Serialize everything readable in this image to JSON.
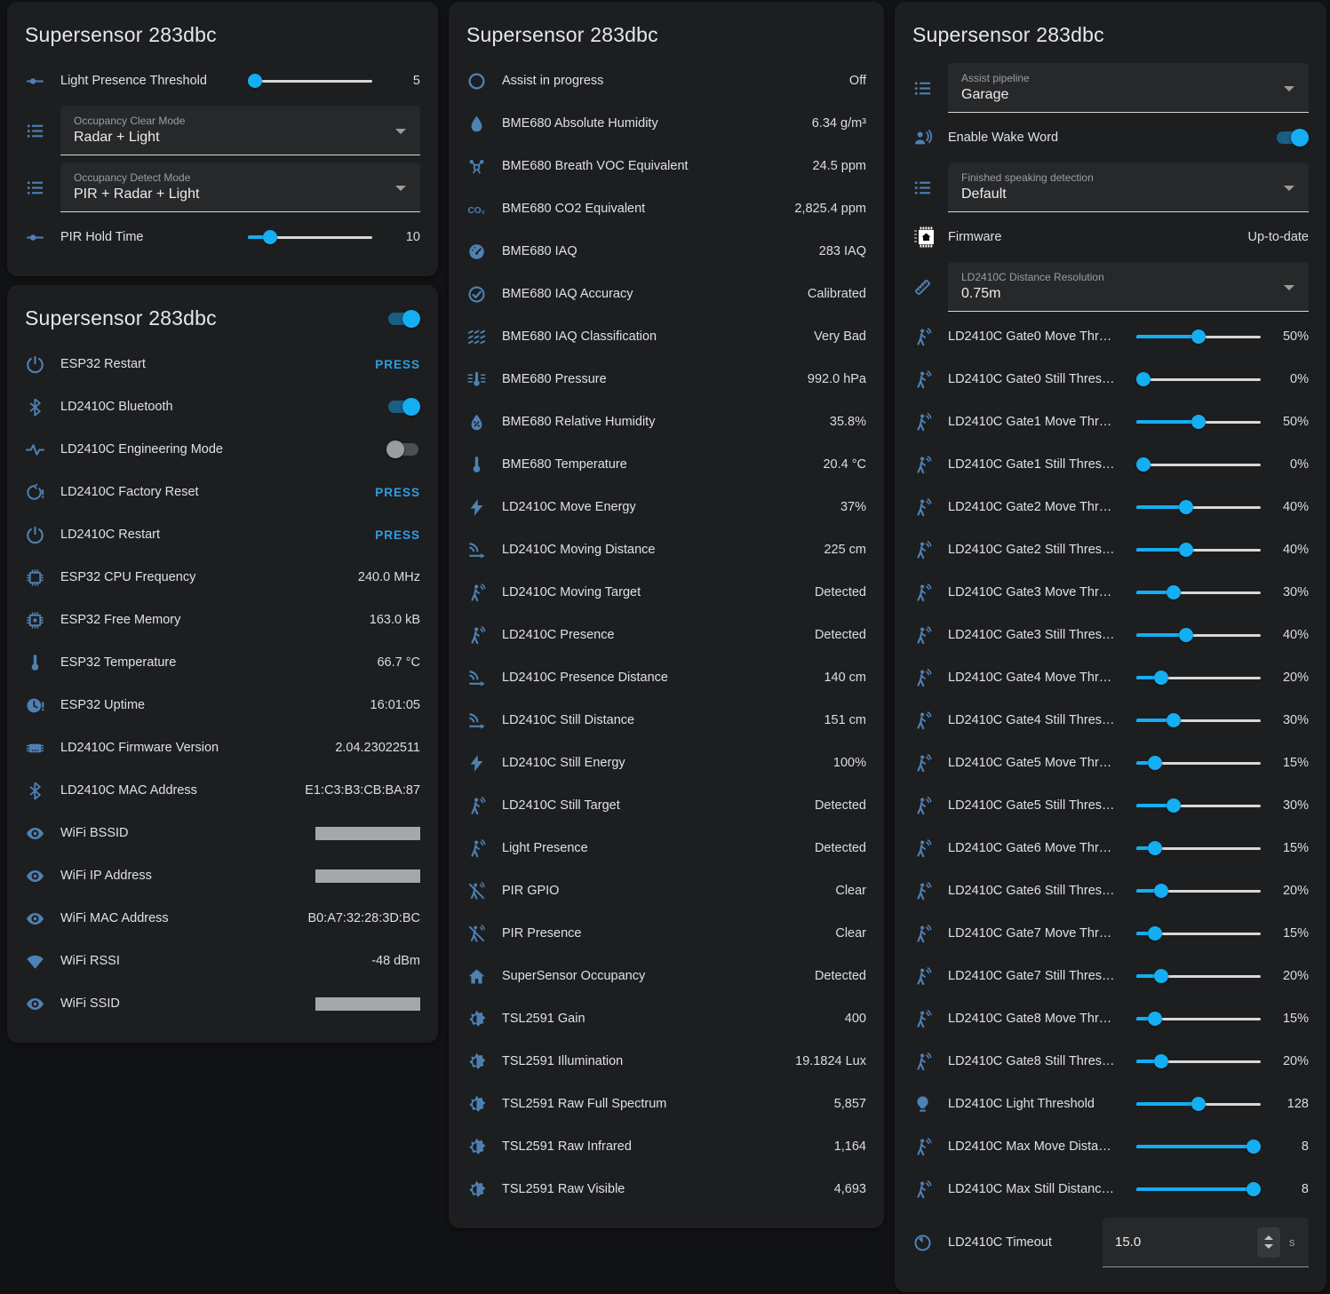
{
  "cards": [
    {
      "title": "Supersensor 283dbc",
      "rows": [
        {
          "icon": "tune",
          "label": "Light Presence Threshold",
          "type": "slider",
          "value": "5",
          "percent": 5
        },
        {
          "icon": "list",
          "type": "select",
          "field_label": "Occupancy Clear Mode",
          "value": "Radar + Light"
        },
        {
          "icon": "list",
          "type": "select",
          "field_label": "Occupancy Detect Mode",
          "value": "PIR + Radar + Light"
        },
        {
          "icon": "tune",
          "label": "PIR Hold Time",
          "type": "slider",
          "value": "10",
          "percent": 18
        }
      ]
    },
    {
      "title": "Supersensor 283dbc",
      "header_toggle_on": true,
      "rows": [
        {
          "icon": "restart",
          "label": "ESP32 Restart",
          "type": "press",
          "value": "PRESS"
        },
        {
          "icon": "bluetooth",
          "label": "LD2410C Bluetooth",
          "type": "toggle",
          "on": true
        },
        {
          "icon": "pulse",
          "label": "LD2410C Engineering Mode",
          "type": "toggle",
          "on": false
        },
        {
          "icon": "restart-alert",
          "label": "LD2410C Factory Reset",
          "type": "press",
          "value": "PRESS"
        },
        {
          "icon": "restart",
          "label": "LD2410C Restart",
          "type": "press",
          "value": "PRESS"
        },
        {
          "icon": "chip",
          "label": "ESP32 CPU Frequency",
          "type": "text",
          "value": "240.0 MHz"
        },
        {
          "icon": "memory",
          "label": "ESP32 Free Memory",
          "type": "text",
          "value": "163.0 kB"
        },
        {
          "icon": "thermometer",
          "label": "ESP32 Temperature",
          "type": "text",
          "value": "66.7 °C"
        },
        {
          "icon": "clock-alert",
          "label": "ESP32 Uptime",
          "type": "text",
          "value": "16:01:05"
        },
        {
          "icon": "chip-lines",
          "label": "LD2410C Firmware Version",
          "type": "text",
          "value": "2.04.23022511"
        },
        {
          "icon": "bluetooth",
          "label": "LD2410C MAC Address",
          "type": "text",
          "value": "E1:C3:B3:CB:BA:87"
        },
        {
          "icon": "eye",
          "label": "WiFi BSSID",
          "type": "redacted"
        },
        {
          "icon": "eye",
          "label": "WiFi IP Address",
          "type": "redacted"
        },
        {
          "icon": "eye",
          "label": "WiFi MAC Address",
          "type": "text",
          "value": "B0:A7:32:28:3D:BC"
        },
        {
          "icon": "wifi",
          "label": "WiFi RSSI",
          "type": "text",
          "value": "-48 dBm"
        },
        {
          "icon": "eye",
          "label": "WiFi SSID",
          "type": "redacted"
        }
      ]
    },
    {
      "title": "Supersensor 283dbc",
      "rows": [
        {
          "icon": "circle",
          "label": "Assist in progress",
          "type": "text",
          "value": "Off"
        },
        {
          "icon": "drop",
          "label": "BME680 Absolute Humidity",
          "type": "text",
          "value": "6.34 g/m³"
        },
        {
          "icon": "molecule",
          "label": "BME680 Breath VOC Equivalent",
          "type": "text",
          "value": "24.5 ppm"
        },
        {
          "icon": "co2",
          "label": "BME680 CO2 Equivalent",
          "type": "text",
          "value": "2,825.4 ppm"
        },
        {
          "icon": "gauge",
          "label": "BME680 IAQ",
          "type": "text",
          "value": "283 IAQ"
        },
        {
          "icon": "check-circle",
          "label": "BME680 IAQ Accuracy",
          "type": "text",
          "value": "Calibrated"
        },
        {
          "icon": "air-filter",
          "label": "BME680 IAQ Classification",
          "type": "text",
          "value": "Very Bad"
        },
        {
          "icon": "pressure",
          "label": "BME680 Pressure",
          "type": "text",
          "value": "992.0 hPa"
        },
        {
          "icon": "water-percent",
          "label": "BME680 Relative Humidity",
          "type": "text",
          "value": "35.8%"
        },
        {
          "icon": "thermometer",
          "label": "BME680 Temperature",
          "type": "text",
          "value": "20.4 °C"
        },
        {
          "icon": "bolt",
          "label": "LD2410C Move Energy",
          "type": "text",
          "value": "37%"
        },
        {
          "icon": "signal-distance",
          "label": "LD2410C Moving Distance",
          "type": "text",
          "value": "225 cm"
        },
        {
          "icon": "person",
          "label": "LD2410C Moving Target",
          "type": "text",
          "value": "Detected"
        },
        {
          "icon": "person",
          "label": "LD2410C Presence",
          "type": "text",
          "value": "Detected"
        },
        {
          "icon": "signal-distance",
          "label": "LD2410C Presence Distance",
          "type": "text",
          "value": "140 cm"
        },
        {
          "icon": "signal-distance",
          "label": "LD2410C Still Distance",
          "type": "text",
          "value": "151 cm"
        },
        {
          "icon": "bolt",
          "label": "LD2410C Still Energy",
          "type": "text",
          "value": "100%"
        },
        {
          "icon": "person",
          "label": "LD2410C Still Target",
          "type": "text",
          "value": "Detected"
        },
        {
          "icon": "person",
          "label": "Light Presence",
          "type": "text",
          "value": "Detected"
        },
        {
          "icon": "person-off",
          "label": "PIR GPIO",
          "type": "text",
          "value": "Clear"
        },
        {
          "icon": "person-off",
          "label": "PIR Presence",
          "type": "text",
          "value": "Clear"
        },
        {
          "icon": "home",
          "label": "SuperSensor Occupancy",
          "type": "text",
          "value": "Detected"
        },
        {
          "icon": "brightness",
          "label": "TSL2591 Gain",
          "type": "text",
          "value": "400"
        },
        {
          "icon": "brightness",
          "label": "TSL2591 Illumination",
          "type": "text",
          "value": "19.1824 Lux"
        },
        {
          "icon": "brightness",
          "label": "TSL2591 Raw Full Spectrum",
          "type": "text",
          "value": "5,857"
        },
        {
          "icon": "brightness",
          "label": "TSL2591 Raw Infrared",
          "type": "text",
          "value": "1,164"
        },
        {
          "icon": "brightness",
          "label": "TSL2591 Raw Visible",
          "type": "text",
          "value": "4,693"
        }
      ]
    },
    {
      "title": "Supersensor 283dbc",
      "rows": [
        {
          "icon": "list",
          "type": "select",
          "field_label": "Assist pipeline",
          "value": "Garage"
        },
        {
          "icon": "voice",
          "label": "Enable Wake Word",
          "type": "toggle",
          "on": true
        },
        {
          "icon": "list",
          "type": "select",
          "field_label": "Finished speaking detection",
          "value": "Default"
        },
        {
          "icon": "chip-home",
          "label": "Firmware",
          "type": "text",
          "value": "Up-to-date"
        },
        {
          "icon": "ruler",
          "type": "select",
          "field_label": "LD2410C Distance Resolution",
          "value": "0.75m"
        },
        {
          "icon": "person",
          "label": "LD2410C Gate0 Move Thr…",
          "type": "slider",
          "value": "50%",
          "percent": 50
        },
        {
          "icon": "person",
          "label": "LD2410C Gate0 Still Thres…",
          "type": "slider",
          "value": "0%",
          "percent": 0
        },
        {
          "icon": "person",
          "label": "LD2410C Gate1 Move Thr…",
          "type": "slider",
          "value": "50%",
          "percent": 50
        },
        {
          "icon": "person",
          "label": "LD2410C Gate1 Still Thres…",
          "type": "slider",
          "value": "0%",
          "percent": 0
        },
        {
          "icon": "person",
          "label": "LD2410C Gate2 Move Thr…",
          "type": "slider",
          "value": "40%",
          "percent": 40
        },
        {
          "icon": "person",
          "label": "LD2410C Gate2 Still Thres…",
          "type": "slider",
          "value": "40%",
          "percent": 40
        },
        {
          "icon": "person",
          "label": "LD2410C Gate3 Move Thr…",
          "type": "slider",
          "value": "30%",
          "percent": 30
        },
        {
          "icon": "person",
          "label": "LD2410C Gate3 Still Thres…",
          "type": "slider",
          "value": "40%",
          "percent": 40
        },
        {
          "icon": "person",
          "label": "LD2410C Gate4 Move Thr…",
          "type": "slider",
          "value": "20%",
          "percent": 20
        },
        {
          "icon": "person",
          "label": "LD2410C Gate4 Still Thres…",
          "type": "slider",
          "value": "30%",
          "percent": 30
        },
        {
          "icon": "person",
          "label": "LD2410C Gate5 Move Thr…",
          "type": "slider",
          "value": "15%",
          "percent": 15
        },
        {
          "icon": "person",
          "label": "LD2410C Gate5 Still Thres…",
          "type": "slider",
          "value": "30%",
          "percent": 30
        },
        {
          "icon": "person",
          "label": "LD2410C Gate6 Move Thr…",
          "type": "slider",
          "value": "15%",
          "percent": 15
        },
        {
          "icon": "person",
          "label": "LD2410C Gate6 Still Thres…",
          "type": "slider",
          "value": "20%",
          "percent": 20
        },
        {
          "icon": "person",
          "label": "LD2410C Gate7 Move Thr…",
          "type": "slider",
          "value": "15%",
          "percent": 15
        },
        {
          "icon": "person",
          "label": "LD2410C Gate7 Still Thres…",
          "type": "slider",
          "value": "20%",
          "percent": 20
        },
        {
          "icon": "person",
          "label": "LD2410C Gate8 Move Thr…",
          "type": "slider",
          "value": "15%",
          "percent": 15
        },
        {
          "icon": "person",
          "label": "LD2410C Gate8 Still Thres…",
          "type": "slider",
          "value": "20%",
          "percent": 20
        },
        {
          "icon": "bulb",
          "label": "LD2410C Light Threshold",
          "type": "slider",
          "value": "128",
          "percent": 50
        },
        {
          "icon": "person",
          "label": "LD2410C Max Move Dista…",
          "type": "slider",
          "value": "8",
          "percent": 100
        },
        {
          "icon": "person",
          "label": "LD2410C Max Still Distanc…",
          "type": "slider",
          "value": "8",
          "percent": 100
        },
        {
          "icon": "timelapse",
          "label": "LD2410C Timeout",
          "type": "number",
          "value": "15.0",
          "unit": "s"
        }
      ]
    }
  ],
  "colors": {
    "accent": "#14aef2",
    "icon_blue": "#4e81b4",
    "card_bg": "#1d1e20",
    "page_bg": "#111213"
  }
}
